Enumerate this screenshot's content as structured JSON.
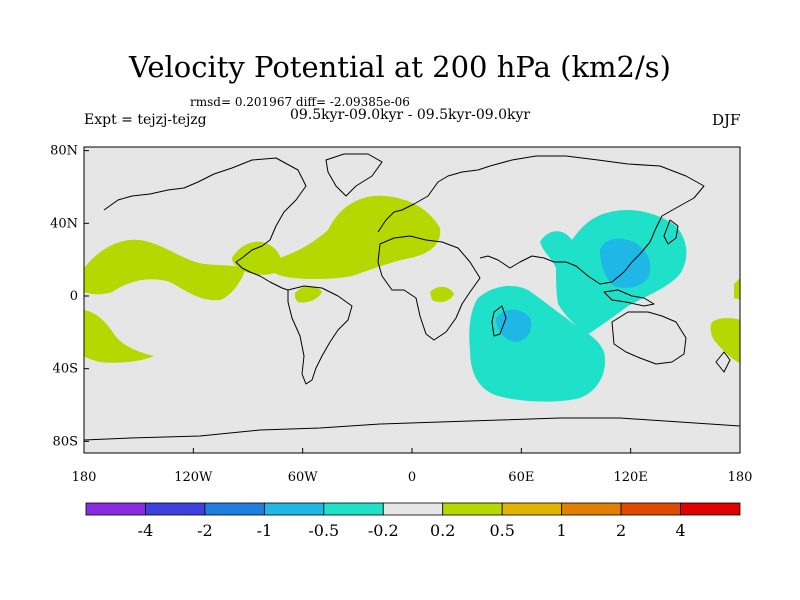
{
  "figure": {
    "title": "Velocity Potential at 200 hPa (km2/s)",
    "stats": "rmsd= 0.201967 diff= -2.09385e-06",
    "experiment": "Expt = tejzj-tejzg",
    "period": "09.5kyr-09.0kyr - 09.5kyr-09.0kyr",
    "season": "DJF"
  },
  "axes": {
    "lat_ticks": [
      {
        "label": "80N",
        "lat": 80
      },
      {
        "label": "40N",
        "lat": 40
      },
      {
        "label": "0",
        "lat": 0
      },
      {
        "label": "40S",
        "lat": -40
      },
      {
        "label": "80S",
        "lat": -80
      }
    ],
    "lon_ticks": [
      {
        "label": "180",
        "lon": -180
      },
      {
        "label": "120W",
        "lon": -120
      },
      {
        "label": "60W",
        "lon": -60
      },
      {
        "label": "0",
        "lon": 0
      },
      {
        "label": "60E",
        "lon": 60
      },
      {
        "label": "120E",
        "lon": 120
      },
      {
        "label": "180",
        "lon": 180
      }
    ]
  },
  "colorbar": {
    "colors": [
      "#8a2be2",
      "#3f3fe0",
      "#1f7fe0",
      "#1fb8e6",
      "#1fe0c8",
      "#e6e6e6",
      "#b4d800",
      "#e0b400",
      "#e07f00",
      "#e04a00",
      "#e00000"
    ],
    "labels": [
      "-4",
      "-2",
      "-1",
      "-0.5",
      "-0.2",
      "0.2",
      "0.5",
      "1",
      "2",
      "4"
    ]
  },
  "map_colors": {
    "background": "#e6e6e6",
    "positive_02_05": "#b4d800",
    "negative_02_05": "#1fe0c8",
    "negative_05_1": "#1fb8e6",
    "coastline": "#000000"
  }
}
